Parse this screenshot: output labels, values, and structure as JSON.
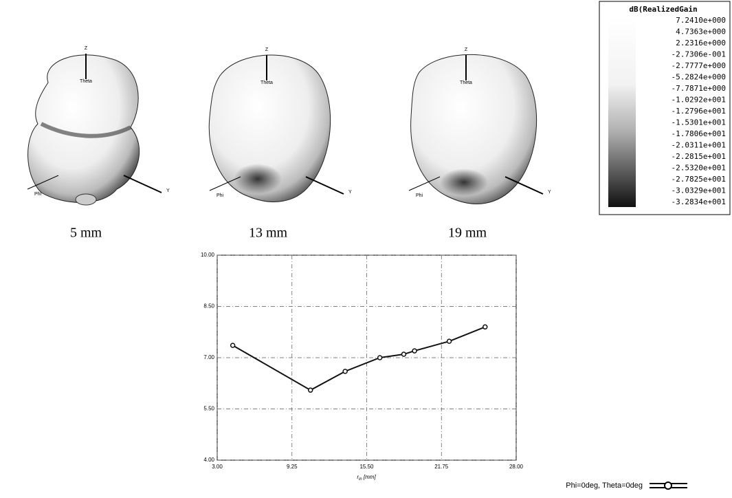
{
  "chart_data": {
    "type": "line",
    "x_label": {
      "symbol": "r",
      "subscript": "in",
      "unit": "[mm]"
    },
    "xlim": [
      3,
      28
    ],
    "xticks": [
      {
        "value": 3,
        "label": "3.00"
      },
      {
        "value": 9.25,
        "label": "9.25"
      },
      {
        "value": 15.5,
        "label": "15.50"
      },
      {
        "value": 21.75,
        "label": "21.75"
      },
      {
        "value": 28,
        "label": "28.00"
      }
    ],
    "ylim": [
      4,
      10
    ],
    "yticks": [
      {
        "value": 4,
        "label": "4.00"
      },
      {
        "value": 5.5,
        "label": "5.50"
      },
      {
        "value": 7,
        "label": "7.00"
      },
      {
        "value": 8.5,
        "label": "8.50"
      },
      {
        "value": 10,
        "label": "10.00"
      }
    ],
    "grid": true,
    "series": [
      {
        "name": "Phi=0deg, Theta=0deg",
        "color": "#111111",
        "x": [
          4.3,
          10.8,
          13.7,
          16.6,
          18.6,
          19.5,
          22.4,
          25.4
        ],
        "values": [
          7.36,
          6.05,
          6.6,
          7.0,
          7.1,
          7.2,
          7.48,
          7.9
        ]
      }
    ]
  },
  "patterns": [
    {
      "label": "5 mm"
    },
    {
      "label": "13 mm"
    },
    {
      "label": "19 mm"
    }
  ],
  "pattern_axes": {
    "z": "Z",
    "theta": "Theta",
    "phi": "Phi",
    "y": "Y"
  },
  "color_scale": {
    "title": "dB(RealizedGain",
    "levels": [
      "7.2410e+000",
      "4.7363e+000",
      "2.2316e+000",
      "-2.7306e-001",
      "-2.7777e+000",
      "-5.2824e+000",
      "-7.7871e+000",
      "-1.0292e+001",
      "-1.2796e+001",
      "-1.5301e+001",
      "-1.7806e+001",
      "-2.0311e+001",
      "-2.2815e+001",
      "-2.5320e+001",
      "-2.7825e+001",
      "-3.0329e+001",
      "-3.2834e+001"
    ]
  }
}
